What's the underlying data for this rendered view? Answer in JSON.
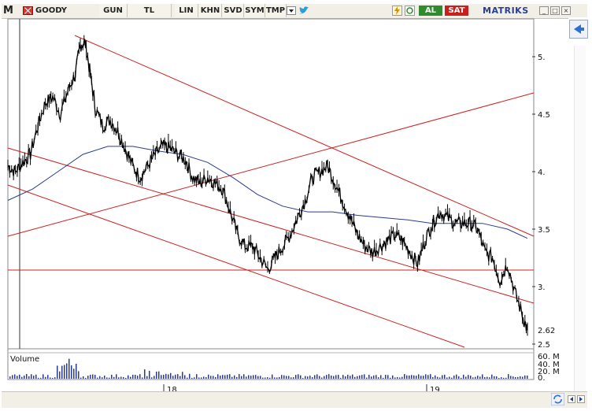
{
  "toolbar": {
    "logo": "M",
    "symbol": "GOODY",
    "period": "GUN",
    "currency": "TL",
    "buttons": [
      "LIN",
      "KHN",
      "SVD",
      "SYM",
      "TMP"
    ],
    "buy_label": "AL",
    "sell_label": "SAT",
    "brand": "MATRIKS",
    "window_buttons": [
      "_",
      "□",
      "×"
    ]
  },
  "colors": {
    "price_line": "#000000",
    "moving_average": "#2b3a8f",
    "trend_lines": "#cc2222",
    "buy": "#2e8b2e",
    "sell": "#c8201c"
  },
  "chart_data": {
    "type": "line",
    "y_axis": {
      "ticks": [
        5.0,
        4.5,
        4.0,
        3.5,
        3.0,
        2.5
      ],
      "tick_labels": [
        "5.",
        "4.5",
        "4.",
        "3.5",
        "3.",
        "2.5"
      ],
      "current_value_label": "2.62",
      "ylim": [
        2.5,
        5.3
      ]
    },
    "x_axis": {
      "tick_labels": [
        "18",
        "19"
      ]
    },
    "price_series": [
      [
        0,
        4.05
      ],
      [
        3,
        4.0
      ],
      [
        6,
        4.08
      ],
      [
        9,
        4.15
      ],
      [
        12,
        4.4
      ],
      [
        15,
        4.6
      ],
      [
        18,
        4.65
      ],
      [
        21,
        4.5
      ],
      [
        24,
        4.7
      ],
      [
        27,
        4.85
      ],
      [
        29,
        5.1
      ],
      [
        31,
        5.12
      ],
      [
        33,
        4.85
      ],
      [
        35,
        4.55
      ],
      [
        38,
        4.4
      ],
      [
        41,
        4.45
      ],
      [
        44,
        4.35
      ],
      [
        47,
        4.2
      ],
      [
        50,
        4.05
      ],
      [
        53,
        3.95
      ],
      [
        56,
        4.05
      ],
      [
        59,
        4.15
      ],
      [
        62,
        4.22
      ],
      [
        65,
        4.2
      ],
      [
        68,
        4.15
      ],
      [
        71,
        4.1
      ],
      [
        74,
        3.95
      ],
      [
        77,
        3.9
      ],
      [
        80,
        3.95
      ],
      [
        83,
        3.9
      ],
      [
        86,
        3.85
      ],
      [
        89,
        3.65
      ],
      [
        92,
        3.45
      ],
      [
        95,
        3.35
      ],
      [
        98,
        3.35
      ],
      [
        101,
        3.25
      ],
      [
        104,
        3.15
      ],
      [
        107,
        3.25
      ],
      [
        110,
        3.35
      ],
      [
        113,
        3.45
      ],
      [
        116,
        3.6
      ],
      [
        119,
        3.75
      ],
      [
        122,
        3.95
      ],
      [
        125,
        4.0
      ],
      [
        128,
        4.05
      ],
      [
        131,
        3.9
      ],
      [
        134,
        3.75
      ],
      [
        137,
        3.6
      ],
      [
        140,
        3.45
      ],
      [
        143,
        3.35
      ],
      [
        146,
        3.3
      ],
      [
        149,
        3.35
      ],
      [
        152,
        3.4
      ],
      [
        155,
        3.45
      ],
      [
        158,
        3.4
      ],
      [
        161,
        3.3
      ],
      [
        164,
        3.2
      ],
      [
        167,
        3.4
      ],
      [
        170,
        3.55
      ],
      [
        173,
        3.65
      ],
      [
        176,
        3.6
      ],
      [
        179,
        3.55
      ],
      [
        182,
        3.55
      ],
      [
        185,
        3.55
      ],
      [
        188,
        3.5
      ],
      [
        191,
        3.3
      ],
      [
        194,
        3.25
      ],
      [
        197,
        3.05
      ],
      [
        200,
        3.2
      ],
      [
        203,
        2.95
      ],
      [
        206,
        2.75
      ],
      [
        208,
        2.62
      ]
    ],
    "moving_average": [
      [
        0,
        3.75
      ],
      [
        10,
        3.85
      ],
      [
        20,
        4.0
      ],
      [
        30,
        4.15
      ],
      [
        40,
        4.22
      ],
      [
        50,
        4.22
      ],
      [
        60,
        4.18
      ],
      [
        70,
        4.15
      ],
      [
        80,
        4.08
      ],
      [
        90,
        3.95
      ],
      [
        100,
        3.8
      ],
      [
        110,
        3.7
      ],
      [
        120,
        3.65
      ],
      [
        130,
        3.65
      ],
      [
        140,
        3.62
      ],
      [
        150,
        3.6
      ],
      [
        160,
        3.58
      ],
      [
        170,
        3.55
      ],
      [
        180,
        3.55
      ],
      [
        190,
        3.55
      ],
      [
        200,
        3.5
      ],
      [
        208,
        3.42
      ]
    ],
    "volume_panel": {
      "label": "Volume",
      "tick_labels": [
        "60. M",
        "40. M",
        "20. M",
        "0."
      ]
    }
  }
}
